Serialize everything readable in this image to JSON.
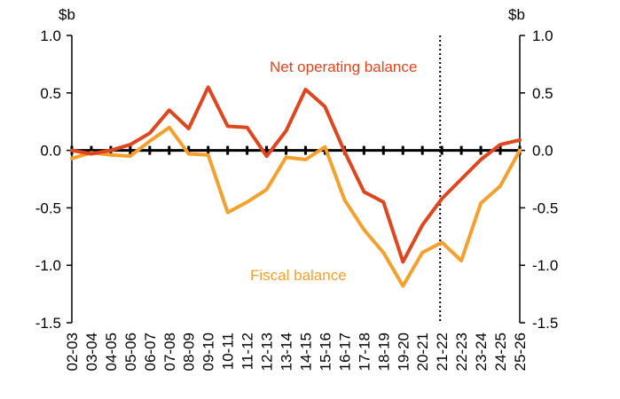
{
  "chart_data": {
    "type": "line",
    "title": "",
    "unit_left": "$b",
    "unit_right": "$b",
    "ylim": [
      -1.5,
      1.0
    ],
    "yticks": [
      {
        "value": 1.0,
        "label": "1.0"
      },
      {
        "value": 0.5,
        "label": "0.5"
      },
      {
        "value": 0.0,
        "label": "0.0"
      },
      {
        "value": -0.5,
        "label": "-0.5"
      },
      {
        "value": -1.0,
        "label": "-1.0"
      },
      {
        "value": -1.5,
        "label": "-1.5"
      }
    ],
    "categories": [
      "02-03",
      "03-04",
      "04-05",
      "05-06",
      "06-07",
      "07-08",
      "08-09",
      "09-10",
      "10-11",
      "11-12",
      "12-13",
      "13-14",
      "14-15",
      "15-16",
      "16-17",
      "17-18",
      "18-19",
      "19-20",
      "20-21",
      "21-22",
      "22-23",
      "23-24",
      "24-25",
      "25-26"
    ],
    "forecast_divider_after": "21-22",
    "grid": false,
    "series": [
      {
        "name": "Net operating balance",
        "color": "#e0461e",
        "values": [
          0.0,
          -0.03,
          0.0,
          0.05,
          0.15,
          0.35,
          0.19,
          0.55,
          0.21,
          0.2,
          -0.05,
          0.17,
          0.53,
          0.38,
          -0.01,
          -0.36,
          -0.45,
          -0.97,
          -0.65,
          -0.42,
          -0.25,
          -0.08,
          0.05,
          0.09
        ]
      },
      {
        "name": "Fiscal balance",
        "color": "#f5a02c",
        "values": [
          -0.07,
          -0.02,
          -0.04,
          -0.05,
          0.08,
          0.2,
          -0.03,
          -0.04,
          -0.54,
          -0.45,
          -0.34,
          -0.06,
          -0.08,
          0.03,
          -0.43,
          -0.69,
          -0.89,
          -1.18,
          -0.89,
          -0.8,
          -0.96,
          -0.46,
          -0.31,
          0.0
        ]
      }
    ]
  }
}
